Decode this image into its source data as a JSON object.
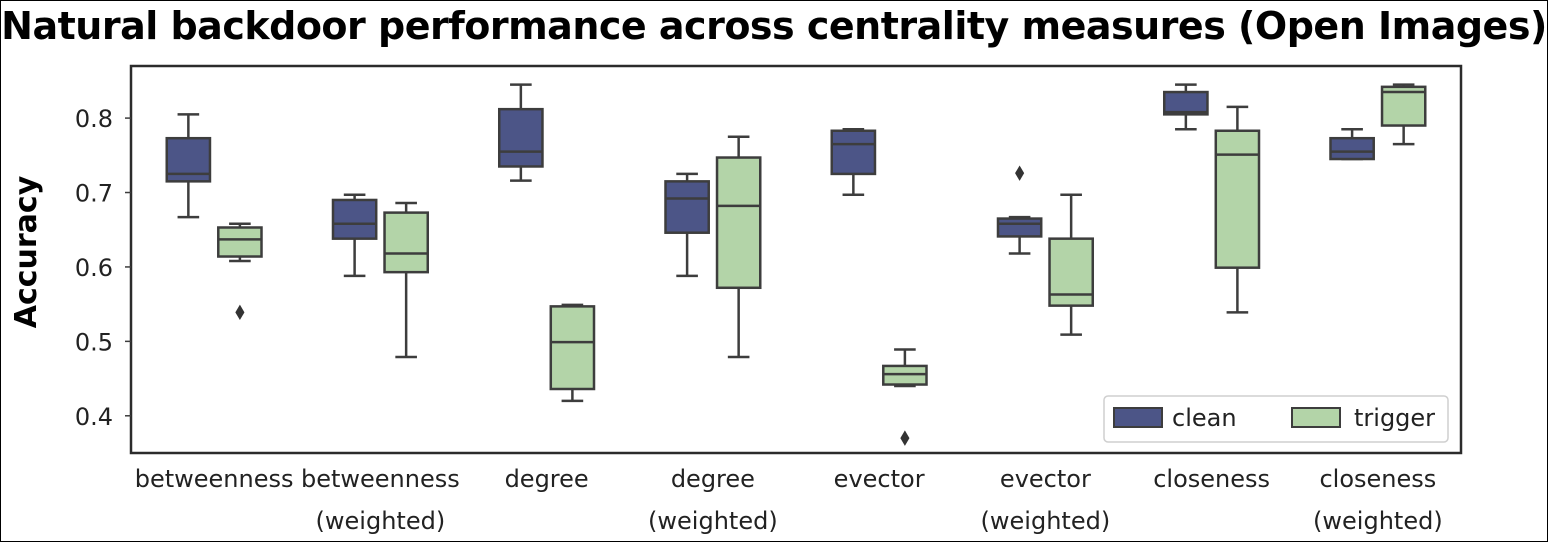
{
  "chart_data": {
    "type": "box",
    "title": "Natural backdoor performance across centrality measures (Open Images)",
    "ylabel": "Accuracy",
    "xlabel": "",
    "ylim": [
      0.35,
      0.87
    ],
    "yticks": [
      0.4,
      0.5,
      0.6,
      0.7,
      0.8
    ],
    "categories": [
      [
        "betweenness"
      ],
      [
        "betweenness",
        "(weighted)"
      ],
      [
        "degree"
      ],
      [
        "degree",
        "(weighted)"
      ],
      [
        "evector"
      ],
      [
        "evector",
        "(weighted)"
      ],
      [
        "closeness"
      ],
      [
        "closeness",
        "(weighted)"
      ]
    ],
    "legend_position": "bottom-right",
    "series": [
      {
        "name": "clean",
        "color": "#4c5587",
        "boxes": [
          {
            "min": 0.667,
            "q1": 0.715,
            "median": 0.725,
            "q3": 0.773,
            "max": 0.805,
            "outliers": []
          },
          {
            "min": 0.588,
            "q1": 0.638,
            "median": 0.658,
            "q3": 0.69,
            "max": 0.697,
            "outliers": []
          },
          {
            "min": 0.716,
            "q1": 0.735,
            "median": 0.755,
            "q3": 0.812,
            "max": 0.845,
            "outliers": []
          },
          {
            "min": 0.588,
            "q1": 0.646,
            "median": 0.692,
            "q3": 0.715,
            "max": 0.725,
            "outliers": []
          },
          {
            "min": 0.697,
            "q1": 0.725,
            "median": 0.765,
            "q3": 0.783,
            "max": 0.785,
            "outliers": []
          },
          {
            "min": 0.618,
            "q1": 0.641,
            "median": 0.658,
            "q3": 0.665,
            "max": 0.667,
            "outliers": [
              0.726
            ]
          },
          {
            "min": 0.785,
            "q1": 0.805,
            "median": 0.808,
            "q3": 0.835,
            "max": 0.845,
            "outliers": []
          },
          {
            "min": 0.745,
            "q1": 0.745,
            "median": 0.755,
            "q3": 0.773,
            "max": 0.785,
            "outliers": []
          }
        ]
      },
      {
        "name": "trigger",
        "color": "#b3d4a8",
        "boxes": [
          {
            "min": 0.608,
            "q1": 0.614,
            "median": 0.637,
            "q3": 0.653,
            "max": 0.658,
            "outliers": [
              0.539
            ]
          },
          {
            "min": 0.479,
            "q1": 0.593,
            "median": 0.618,
            "q3": 0.673,
            "max": 0.686,
            "outliers": []
          },
          {
            "min": 0.42,
            "q1": 0.436,
            "median": 0.499,
            "q3": 0.547,
            "max": 0.549,
            "outliers": []
          },
          {
            "min": 0.479,
            "q1": 0.572,
            "median": 0.682,
            "q3": 0.747,
            "max": 0.775,
            "outliers": []
          },
          {
            "min": 0.44,
            "q1": 0.442,
            "median": 0.456,
            "q3": 0.467,
            "max": 0.489,
            "outliers": [
              0.37
            ]
          },
          {
            "min": 0.509,
            "q1": 0.548,
            "median": 0.563,
            "q3": 0.638,
            "max": 0.697,
            "outliers": []
          },
          {
            "min": 0.539,
            "q1": 0.599,
            "median": 0.751,
            "q3": 0.783,
            "max": 0.815,
            "outliers": []
          },
          {
            "min": 0.765,
            "q1": 0.79,
            "median": 0.835,
            "q3": 0.842,
            "max": 0.845,
            "outliers": []
          }
        ]
      }
    ]
  }
}
